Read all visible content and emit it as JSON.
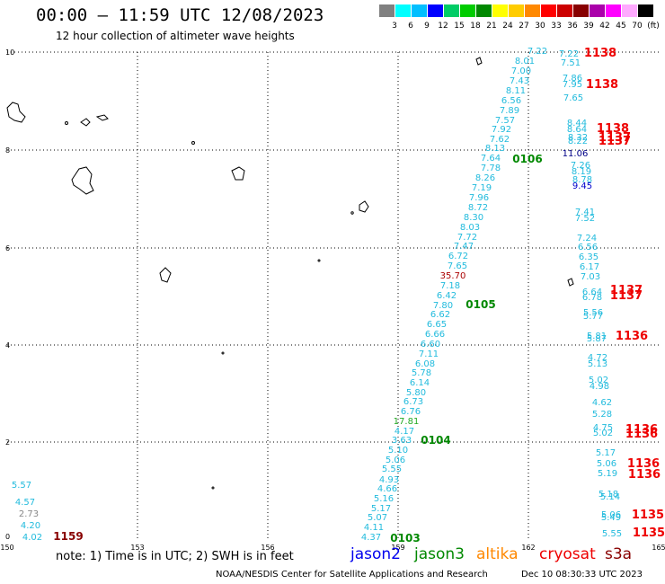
{
  "header": {
    "title": "00:00 – 11:59 UTC 12/08/2023",
    "subtitle": "12 hour collection of altimeter wave heights"
  },
  "scale": {
    "colors": [
      "#808080",
      "#00ffff",
      "#00bfff",
      "#0000ff",
      "#00cc66",
      "#00cc00",
      "#008800",
      "#ffff00",
      "#ffcc00",
      "#ff8800",
      "#ff0000",
      "#cc0000",
      "#880000",
      "#aa00aa",
      "#ff00ff",
      "#ffaaff",
      "#000000"
    ],
    "labels": [
      "3",
      "6",
      "9",
      "12",
      "15",
      "18",
      "21",
      "24",
      "27",
      "30",
      "33",
      "36",
      "39",
      "42",
      "45",
      "70",
      "(ft)"
    ]
  },
  "axes": {
    "y_ticks": [
      "10",
      "8",
      "6",
      "4",
      "2",
      "0"
    ],
    "x_ticks": [
      "150",
      "153",
      "156",
      "159",
      "162",
      "165"
    ]
  },
  "observations": [
    {
      "t": "7.22",
      "c": "#22bbdd"
    },
    {
      "t": "8.01",
      "c": "#22bbdd"
    },
    {
      "t": "7.00",
      "c": "#22bbdd"
    },
    {
      "t": "7.43",
      "c": "#22bbdd"
    },
    {
      "t": "8.11",
      "c": "#22bbdd"
    },
    {
      "t": "6.56",
      "c": "#22bbdd"
    },
    {
      "t": "7.89",
      "c": "#22bbdd"
    },
    {
      "t": "7.57",
      "c": "#22bbdd"
    },
    {
      "t": "7.92",
      "c": "#22bbdd"
    },
    {
      "t": "7.62",
      "c": "#22bbdd"
    },
    {
      "t": "8.13",
      "c": "#22bbdd"
    },
    {
      "t": "7.64",
      "c": "#22bbdd"
    },
    {
      "t": "7.78",
      "c": "#22bbdd"
    },
    {
      "t": "8.26",
      "c": "#22bbdd"
    },
    {
      "t": "7.19",
      "c": "#22bbdd"
    },
    {
      "t": "7.96",
      "c": "#22bbdd"
    },
    {
      "t": "8.72",
      "c": "#22bbdd"
    },
    {
      "t": "8.30",
      "c": "#22bbdd"
    },
    {
      "t": "8.03",
      "c": "#22bbdd"
    },
    {
      "t": "7.72",
      "c": "#22bbdd"
    },
    {
      "t": "7.47",
      "c": "#22bbdd"
    },
    {
      "t": "6.72",
      "c": "#22bbdd"
    },
    {
      "t": "7.65",
      "c": "#22bbdd"
    },
    {
      "t": "35.70",
      "c": "#aa0000"
    },
    {
      "t": "7.18",
      "c": "#22bbdd"
    },
    {
      "t": "6.42",
      "c": "#22bbdd"
    },
    {
      "t": "7.80",
      "c": "#22bbdd"
    },
    {
      "t": "6.62",
      "c": "#22bbdd"
    },
    {
      "t": "6.65",
      "c": "#22bbdd"
    },
    {
      "t": "6.66",
      "c": "#22bbdd"
    },
    {
      "t": "6.60",
      "c": "#22bbdd"
    },
    {
      "t": "7.11",
      "c": "#22bbdd"
    },
    {
      "t": "6.08",
      "c": "#22bbdd"
    },
    {
      "t": "5.78",
      "c": "#22bbdd"
    },
    {
      "t": "6.14",
      "c": "#22bbdd"
    },
    {
      "t": "5.80",
      "c": "#22bbdd"
    },
    {
      "t": "6.73",
      "c": "#22bbdd"
    },
    {
      "t": "6.76",
      "c": "#22bbdd"
    },
    {
      "t": "17.81",
      "c": "#22aa22"
    },
    {
      "t": "4.17",
      "c": "#22bbdd"
    },
    {
      "t": "3.63",
      "c": "#22bbdd"
    },
    {
      "t": "5.10",
      "c": "#22bbdd"
    },
    {
      "t": "5.06",
      "c": "#22bbdd"
    },
    {
      "t": "5.55",
      "c": "#22bbdd"
    },
    {
      "t": "4.93",
      "c": "#22bbdd"
    },
    {
      "t": "4.66",
      "c": "#22bbdd"
    },
    {
      "t": "5.16",
      "c": "#22bbdd"
    },
    {
      "t": "5.17",
      "c": "#22bbdd"
    },
    {
      "t": "5.07",
      "c": "#22bbdd"
    },
    {
      "t": "4.11",
      "c": "#22bbdd"
    },
    {
      "t": "4.37",
      "c": "#22bbdd"
    },
    {
      "t": "7.22",
      "c": "#22bbdd"
    },
    {
      "t": "7.51",
      "c": "#22bbdd"
    },
    {
      "t": "7.86",
      "c": "#22bbdd"
    },
    {
      "t": "7.95",
      "c": "#22bbdd"
    },
    {
      "t": "7.65",
      "c": "#22bbdd"
    },
    {
      "t": "8.44",
      "c": "#22bbdd"
    },
    {
      "t": "8.64",
      "c": "#22bbdd"
    },
    {
      "t": "8.32",
      "c": "#22bbdd"
    },
    {
      "t": "8.22",
      "c": "#22bbdd"
    },
    {
      "t": "11.06",
      "c": "#000088"
    },
    {
      "t": "7.26",
      "c": "#22bbdd"
    },
    {
      "t": "8.19",
      "c": "#22bbdd"
    },
    {
      "t": "8.78",
      "c": "#22bbdd"
    },
    {
      "t": "9.45",
      "c": "#0000cc"
    },
    {
      "t": "7.41",
      "c": "#22bbdd"
    },
    {
      "t": "7.52",
      "c": "#22bbdd"
    },
    {
      "t": "7.24",
      "c": "#22bbdd"
    },
    {
      "t": "6.56",
      "c": "#22bbdd"
    },
    {
      "t": "6.35",
      "c": "#22bbdd"
    },
    {
      "t": "6.17",
      "c": "#22bbdd"
    },
    {
      "t": "7.03",
      "c": "#22bbdd"
    },
    {
      "t": "6.64",
      "c": "#22bbdd"
    },
    {
      "t": "6.78",
      "c": "#22bbdd"
    },
    {
      "t": "5.56",
      "c": "#22bbdd"
    },
    {
      "t": "5.77",
      "c": "#22bbdd"
    },
    {
      "t": "5.81",
      "c": "#22bbdd"
    },
    {
      "t": "5.87",
      "c": "#22bbdd"
    },
    {
      "t": "4.72",
      "c": "#22bbdd"
    },
    {
      "t": "5.13",
      "c": "#22bbdd"
    },
    {
      "t": "5.02",
      "c": "#22bbdd"
    },
    {
      "t": "4.98",
      "c": "#22bbdd"
    },
    {
      "t": "4.62",
      "c": "#22bbdd"
    },
    {
      "t": "5.28",
      "c": "#22bbdd"
    },
    {
      "t": "4.75",
      "c": "#22bbdd"
    },
    {
      "t": "5.02",
      "c": "#22bbdd"
    },
    {
      "t": "5.17",
      "c": "#22bbdd"
    },
    {
      "t": "5.06",
      "c": "#22bbdd"
    },
    {
      "t": "5.19",
      "c": "#22bbdd"
    },
    {
      "t": "5.18",
      "c": "#22bbdd"
    },
    {
      "t": "5.14",
      "c": "#22bbdd"
    },
    {
      "t": "5.06",
      "c": "#22bbdd"
    },
    {
      "t": "5.49",
      "c": "#22bbdd"
    },
    {
      "t": "5.55",
      "c": "#22bbdd"
    },
    {
      "t": "5.57",
      "c": "#22bbdd"
    },
    {
      "t": "4.57",
      "c": "#22bbdd"
    },
    {
      "t": "2.73",
      "c": "#888888"
    },
    {
      "t": "4.20",
      "c": "#22bbdd"
    },
    {
      "t": "4.02",
      "c": "#22bbdd"
    },
    {
      "t": "5.96",
      "c": "#22bbdd"
    }
  ],
  "pass_times": [
    {
      "t": "1138",
      "c": "#ee0000"
    },
    {
      "t": "1138",
      "c": "#ee0000"
    },
    {
      "t": "1138",
      "c": "#ee0000"
    },
    {
      "t": "1137",
      "c": "#ee0000"
    },
    {
      "t": "1137",
      "c": "#ee0000"
    },
    {
      "t": "1137",
      "c": "#ee0000"
    },
    {
      "t": "1137",
      "c": "#ee0000"
    },
    {
      "t": "1136",
      "c": "#ee0000"
    },
    {
      "t": "1136",
      "c": "#ee0000"
    },
    {
      "t": "1136",
      "c": "#ee0000"
    },
    {
      "t": "1136",
      "c": "#ee0000"
    },
    {
      "t": "1136",
      "c": "#ee0000"
    },
    {
      "t": "1135",
      "c": "#ee0000"
    },
    {
      "t": "1135",
      "c": "#ee0000"
    },
    {
      "t": "0106",
      "c": "#008800"
    },
    {
      "t": "0105",
      "c": "#008800"
    },
    {
      "t": "0104",
      "c": "#008800"
    },
    {
      "t": "0103",
      "c": "#008800"
    },
    {
      "t": "1159",
      "c": "#880000"
    }
  ],
  "footer": {
    "note": "note: 1) Time is in UTC; 2) SWH is in feet",
    "legend": [
      {
        "label": "jason2",
        "color": "#0000ee"
      },
      {
        "label": "jason3",
        "color": "#008800"
      },
      {
        "label": "altika",
        "color": "#ff8800"
      },
      {
        "label": "cryosat",
        "color": "#ee0000"
      },
      {
        "label": "s3a",
        "color": "#880000"
      }
    ],
    "credit": "NOAA/NESDIS Center for Satellite Applications and Research",
    "timestamp": "Dec 10 08:30:33 UTC 2023"
  }
}
